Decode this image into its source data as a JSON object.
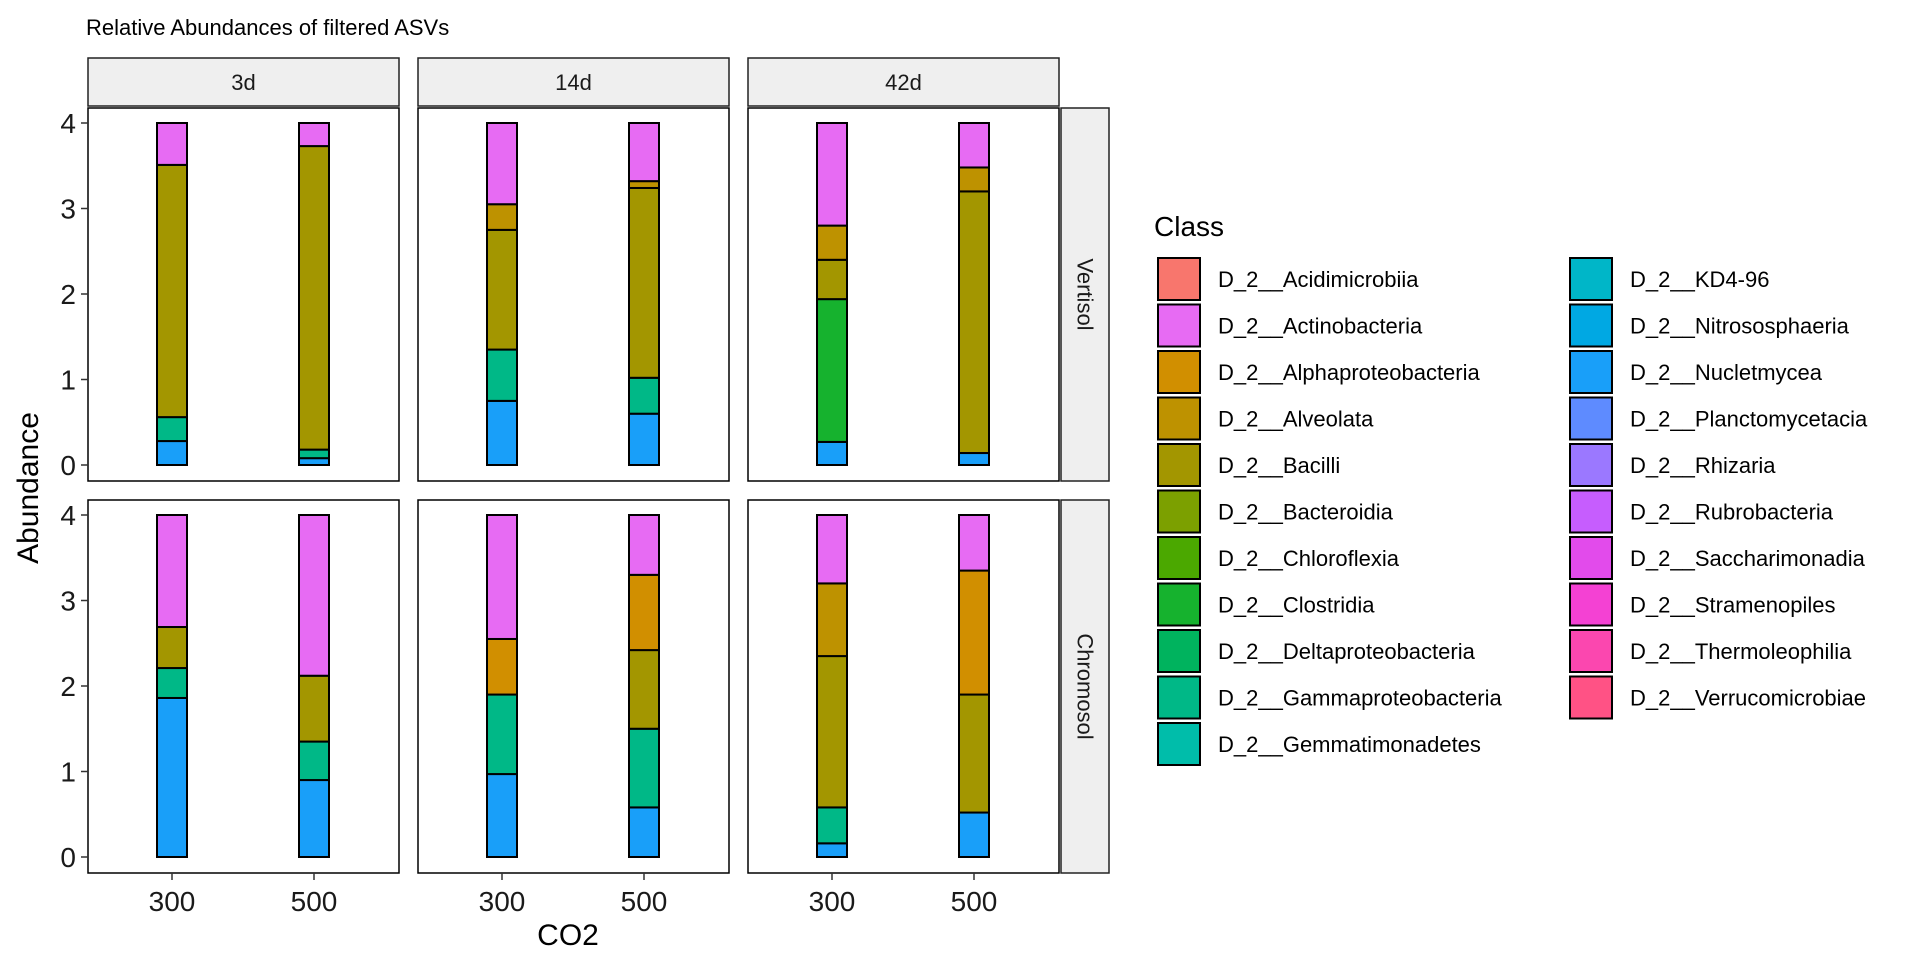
{
  "chart_data": {
    "type": "bar",
    "title": "Relative Abundances of filtered ASVs",
    "xlabel": "CO2",
    "ylabel": "Abundance",
    "ylim": [
      0,
      4
    ],
    "yticks": [
      0,
      1,
      2,
      3,
      4
    ],
    "categories": [
      "300",
      "500"
    ],
    "facet_cols": [
      "3d",
      "14d",
      "42d"
    ],
    "facet_rows": [
      "Vertisol",
      "Chromosol"
    ],
    "legend": {
      "title": "Class",
      "position": "right",
      "items": [
        {
          "name": "D_2__Acidimicrobiia",
          "color": "#F8766D"
        },
        {
          "name": "D_2__Actinobacteria",
          "color": "#E76BF3"
        },
        {
          "name": "D_2__Alphaproteobacteria",
          "color": "#D18F00"
        },
        {
          "name": "D_2__Alveolata",
          "color": "#BE9200"
        },
        {
          "name": "D_2__Bacilli",
          "color": "#A39600"
        },
        {
          "name": "D_2__Bacteroidia",
          "color": "#7CA000"
        },
        {
          "name": "D_2__Chloroflexia",
          "color": "#4BA800"
        },
        {
          "name": "D_2__Clostridia",
          "color": "#16B22E"
        },
        {
          "name": "D_2__Deltaproteobacteria",
          "color": "#00B35E"
        },
        {
          "name": "D_2__Gammaproteobacteria",
          "color": "#00B887"
        },
        {
          "name": "D_2__Gemmatimonadetes",
          "color": "#00BDAA"
        },
        {
          "name": "D_2__KD4-96",
          "color": "#00B6C8"
        },
        {
          "name": "D_2__Nitrososphaeria",
          "color": "#00A8E3"
        },
        {
          "name": "D_2__Nucletmycea",
          "color": "#199FF9"
        },
        {
          "name": "D_2__Planctomycetacia",
          "color": "#5E8BFF"
        },
        {
          "name": "D_2__Rhizaria",
          "color": "#9B78FF"
        },
        {
          "name": "D_2__Rubrobacteria",
          "color": "#C65DFE"
        },
        {
          "name": "D_2__Saccharimonadia",
          "color": "#E24BEB"
        },
        {
          "name": "D_2__Stramenopiles",
          "color": "#F441D3"
        },
        {
          "name": "D_2__Thermoleophilia",
          "color": "#FB47AF"
        },
        {
          "name": "D_2__Verrucomicrobiae",
          "color": "#FF5285"
        }
      ]
    },
    "panels": [
      {
        "row": "Vertisol",
        "col": "3d",
        "bars": [
          {
            "x": "300",
            "segments": [
              {
                "class": "D_2__Nucletmycea",
                "value": 0.28
              },
              {
                "class": "D_2__Gammaproteobacteria",
                "value": 0.28
              },
              {
                "class": "D_2__Bacilli",
                "value": 2.95
              },
              {
                "class": "D_2__Actinobacteria",
                "value": 0.49
              }
            ]
          },
          {
            "x": "500",
            "segments": [
              {
                "class": "D_2__Nucletmycea",
                "value": 0.08
              },
              {
                "class": "D_2__Gammaproteobacteria",
                "value": 0.1
              },
              {
                "class": "D_2__Bacilli",
                "value": 3.55
              },
              {
                "class": "D_2__Actinobacteria",
                "value": 0.27
              }
            ]
          }
        ]
      },
      {
        "row": "Vertisol",
        "col": "14d",
        "bars": [
          {
            "x": "300",
            "segments": [
              {
                "class": "D_2__Nucletmycea",
                "value": 0.75
              },
              {
                "class": "D_2__Gammaproteobacteria",
                "value": 0.6
              },
              {
                "class": "D_2__Bacilli",
                "value": 1.4
              },
              {
                "class": "D_2__Alveolata",
                "value": 0.3
              },
              {
                "class": "D_2__Actinobacteria",
                "value": 0.95
              }
            ]
          },
          {
            "x": "500",
            "segments": [
              {
                "class": "D_2__Nucletmycea",
                "value": 0.6
              },
              {
                "class": "D_2__Gammaproteobacteria",
                "value": 0.42
              },
              {
                "class": "D_2__Bacilli",
                "value": 2.22
              },
              {
                "class": "D_2__Alveolata",
                "value": 0.08
              },
              {
                "class": "D_2__Actinobacteria",
                "value": 0.68
              }
            ]
          }
        ]
      },
      {
        "row": "Vertisol",
        "col": "42d",
        "bars": [
          {
            "x": "300",
            "segments": [
              {
                "class": "D_2__Nucletmycea",
                "value": 0.27
              },
              {
                "class": "D_2__Clostridia",
                "value": 1.67
              },
              {
                "class": "D_2__Bacilli",
                "value": 0.46
              },
              {
                "class": "D_2__Alveolata",
                "value": 0.4
              },
              {
                "class": "D_2__Actinobacteria",
                "value": 1.2
              }
            ]
          },
          {
            "x": "500",
            "segments": [
              {
                "class": "D_2__Nucletmycea",
                "value": 0.14
              },
              {
                "class": "D_2__Bacilli",
                "value": 3.06
              },
              {
                "class": "D_2__Alveolata",
                "value": 0.28
              },
              {
                "class": "D_2__Actinobacteria",
                "value": 0.52
              }
            ]
          }
        ]
      },
      {
        "row": "Chromosol",
        "col": "3d",
        "bars": [
          {
            "x": "300",
            "segments": [
              {
                "class": "D_2__Nucletmycea",
                "value": 1.86
              },
              {
                "class": "D_2__Gammaproteobacteria",
                "value": 0.35
              },
              {
                "class": "D_2__Bacilli",
                "value": 0.48
              },
              {
                "class": "D_2__Actinobacteria",
                "value": 1.31
              }
            ]
          },
          {
            "x": "500",
            "segments": [
              {
                "class": "D_2__Nucletmycea",
                "value": 0.9
              },
              {
                "class": "D_2__Gammaproteobacteria",
                "value": 0.45
              },
              {
                "class": "D_2__Bacilli",
                "value": 0.77
              },
              {
                "class": "D_2__Actinobacteria",
                "value": 1.88
              }
            ]
          }
        ]
      },
      {
        "row": "Chromosol",
        "col": "14d",
        "bars": [
          {
            "x": "300",
            "segments": [
              {
                "class": "D_2__Nucletmycea",
                "value": 0.97
              },
              {
                "class": "D_2__Gammaproteobacteria",
                "value": 0.93
              },
              {
                "class": "D_2__Alphaproteobacteria",
                "value": 0.65
              },
              {
                "class": "D_2__Actinobacteria",
                "value": 1.45
              }
            ]
          },
          {
            "x": "500",
            "segments": [
              {
                "class": "D_2__Nucletmycea",
                "value": 0.58
              },
              {
                "class": "D_2__Gammaproteobacteria",
                "value": 0.92
              },
              {
                "class": "D_2__Bacilli",
                "value": 0.92
              },
              {
                "class": "D_2__Alphaproteobacteria",
                "value": 0.88
              },
              {
                "class": "D_2__Actinobacteria",
                "value": 0.7
              }
            ]
          }
        ]
      },
      {
        "row": "Chromosol",
        "col": "42d",
        "bars": [
          {
            "x": "300",
            "segments": [
              {
                "class": "D_2__Nucletmycea",
                "value": 0.16
              },
              {
                "class": "D_2__Gammaproteobacteria",
                "value": 0.42
              },
              {
                "class": "D_2__Bacilli",
                "value": 1.77
              },
              {
                "class": "D_2__Alveolata",
                "value": 0.85
              },
              {
                "class": "D_2__Actinobacteria",
                "value": 0.8
              }
            ]
          },
          {
            "x": "500",
            "segments": [
              {
                "class": "D_2__Nucletmycea",
                "value": 0.52
              },
              {
                "class": "D_2__Bacilli",
                "value": 1.38
              },
              {
                "class": "D_2__Alphaproteobacteria",
                "value": 1.45
              },
              {
                "class": "D_2__Actinobacteria",
                "value": 0.65
              }
            ]
          }
        ]
      }
    ]
  }
}
